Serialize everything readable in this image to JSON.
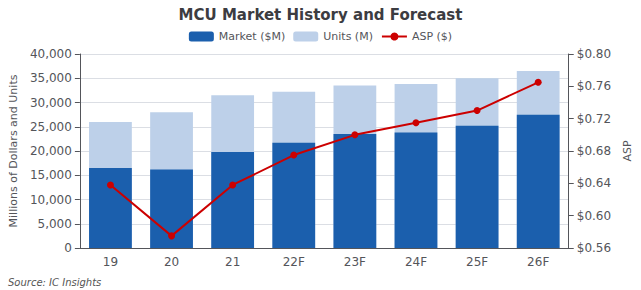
{
  "chart_data": {
    "type": "bar",
    "title": "MCU Market History and Forecast",
    "categories": [
      "19",
      "20",
      "21",
      "22F",
      "23F",
      "24F",
      "25F",
      "26F"
    ],
    "series": [
      {
        "name": "Market ($M)",
        "color": "#1B5FAD",
        "values": [
          16500,
          16200,
          19800,
          21700,
          23500,
          23800,
          25200,
          27500
        ]
      },
      {
        "name": "Units (M)",
        "color": "#BDD0E9",
        "values": [
          26000,
          28000,
          31500,
          32200,
          33500,
          33800,
          35000,
          36500
        ]
      },
      {
        "name": "ASP ($)",
        "type": "line",
        "marker": "circle",
        "axis": "y2",
        "color": "#CC0000",
        "values": [
          0.638,
          0.575,
          0.638,
          0.675,
          0.7,
          0.715,
          0.73,
          0.765
        ]
      }
    ],
    "ylabel": "Millions of Dollars and Units",
    "y2label": "ASP",
    "ylim": [
      0,
      40000
    ],
    "yticks": [
      0,
      {
        "value": 5000,
        "label": "5,000"
      },
      {
        "value": 10000,
        "label": "10,000"
      },
      {
        "value": 15000,
        "label": "15,000"
      },
      {
        "value": 20000,
        "label": "20,000"
      },
      {
        "value": 25000,
        "label": "25,000"
      },
      {
        "value": 30000,
        "label": "30,000"
      },
      {
        "value": 35000,
        "label": "35,000"
      },
      {
        "value": 40000,
        "label": "40,000"
      }
    ],
    "y2lim": [
      0.56,
      0.8
    ],
    "y2ticks": [
      {
        "value": 0.56,
        "label": "$0.56"
      },
      {
        "value": 0.6,
        "label": "$0.60"
      },
      {
        "value": 0.64,
        "label": "$0.64"
      },
      {
        "value": 0.68,
        "label": "$0.68"
      },
      {
        "value": 0.72,
        "label": "$0.72"
      },
      {
        "value": 0.76,
        "label": "$0.76"
      },
      {
        "value": 0.8,
        "label": "$0.80"
      }
    ],
    "grid": true,
    "legend": "top",
    "annotations": [
      "Source: IC Insights"
    ]
  }
}
